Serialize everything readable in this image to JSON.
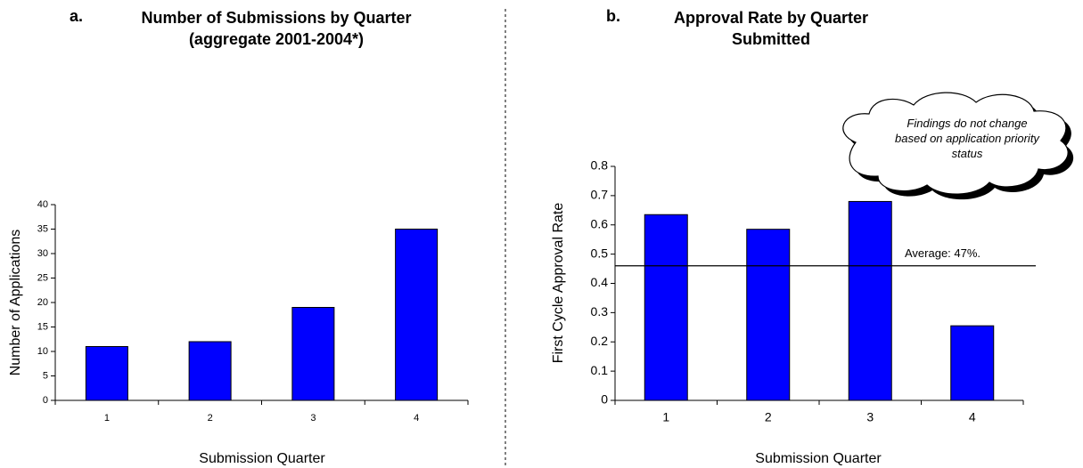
{
  "chart_data": [
    {
      "type": "bar",
      "label": "a.",
      "title": "Number of Submissions by Quarter (aggregate 2001-2004*)",
      "x_label": "Submission Quarter",
      "y_label": "Number of Applications",
      "categories": [
        "1",
        "2",
        "3",
        "4"
      ],
      "values": [
        11,
        12,
        19,
        35
      ],
      "color": "#0000ff",
      "ylim": [
        0,
        40
      ],
      "yticks": [
        0,
        5,
        10,
        15,
        20,
        25,
        30,
        35,
        40
      ],
      "grid": false
    },
    {
      "type": "bar",
      "label": "b.",
      "title": "Approval Rate by Quarter Submitted",
      "x_label": "Submission Quarter",
      "y_label": "First Cycle Approval Rate",
      "categories": [
        "1",
        "2",
        "3",
        "4"
      ],
      "values": [
        0.635,
        0.585,
        0.68,
        0.255
      ],
      "color": "#0000ff",
      "ylim": [
        0,
        0.8
      ],
      "yticks": [
        0,
        0.1,
        0.2,
        0.3,
        0.4,
        0.5,
        0.6,
        0.7,
        0.8
      ],
      "grid": false,
      "hline": 0.46,
      "annotations": [
        "Average: 47%.",
        "Findings do not change based on application priority status"
      ]
    }
  ]
}
